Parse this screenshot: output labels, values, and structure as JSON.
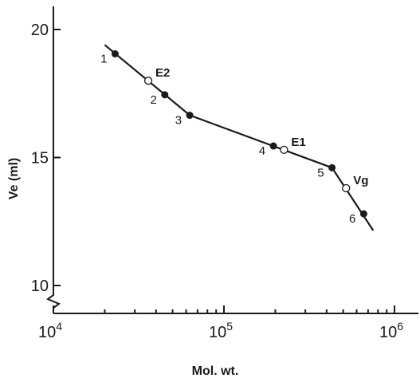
{
  "chart_data": {
    "type": "scatter",
    "title": "",
    "xlabel": "Mol. wt.",
    "ylabel": "Ve (ml)",
    "xscale": "log",
    "xlim": [
      10000,
      1000000
    ],
    "ylim": [
      8.5,
      21
    ],
    "y_axis_break": true,
    "x_ticks": [
      {
        "value": 10000,
        "base": "10",
        "exp": "4"
      },
      {
        "value": 100000,
        "base": "10",
        "exp": "5"
      },
      {
        "value": 1000000,
        "base": "10",
        "exp": "6"
      }
    ],
    "y_ticks": [
      {
        "value": 10,
        "label": "10"
      },
      {
        "value": 15,
        "label": "15"
      },
      {
        "value": 20,
        "label": "20"
      }
    ],
    "line": {
      "x": [
        20000,
        63000,
        430000,
        750000
      ],
      "y": [
        19.4,
        16.65,
        14.6,
        12.15
      ]
    },
    "calibration_points": [
      {
        "label": "1",
        "x": 23000,
        "y": 19.05
      },
      {
        "label": "2",
        "x": 45000,
        "y": 17.45
      },
      {
        "label": "3",
        "x": 63000,
        "y": 16.65
      },
      {
        "label": "4",
        "x": 195000,
        "y": 15.45
      },
      {
        "label": "5",
        "x": 430000,
        "y": 14.6
      },
      {
        "label": "6",
        "x": 660000,
        "y": 12.8
      }
    ],
    "unknown_points": [
      {
        "label": "E2",
        "x": 36000,
        "y": 18.0
      },
      {
        "label": "E1",
        "x": 225000,
        "y": 15.3
      },
      {
        "label": "Vg",
        "x": 520000,
        "y": 13.8
      }
    ]
  }
}
